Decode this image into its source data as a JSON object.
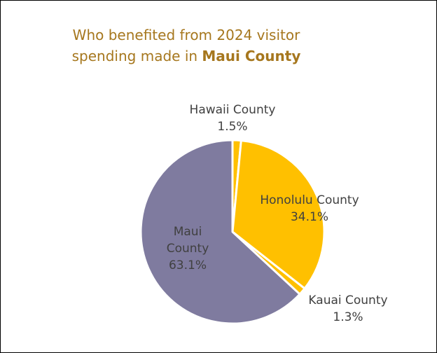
{
  "chart_data": {
    "type": "pie",
    "title_prefix": "Who benefited from 2024 visitor spending made in ",
    "title_bold": "Maui County",
    "slices": [
      {
        "name": "Hawaii County",
        "label_lines": [
          "Hawaii County",
          "1.5%"
        ],
        "value": 1.5,
        "pct_text": "1.5%",
        "color": "#ffc000"
      },
      {
        "name": "Honolulu County",
        "label_lines": [
          "Honolulu County",
          "34.1%"
        ],
        "value": 34.1,
        "pct_text": "34.1%",
        "color": "#ffc000"
      },
      {
        "name": "Kauai County",
        "label_lines": [
          "Kauai County",
          "1.3%"
        ],
        "value": 1.3,
        "pct_text": "1.3%",
        "color": "#ffc000"
      },
      {
        "name": "Maui County",
        "label_lines": [
          "Maui",
          "County",
          "63.1%"
        ],
        "value": 63.1,
        "pct_text": "63.1%",
        "color": "#7f7b9f"
      }
    ],
    "label_color": "#404040",
    "title_color": "#a6771e",
    "separator_color": "#ffffff"
  }
}
